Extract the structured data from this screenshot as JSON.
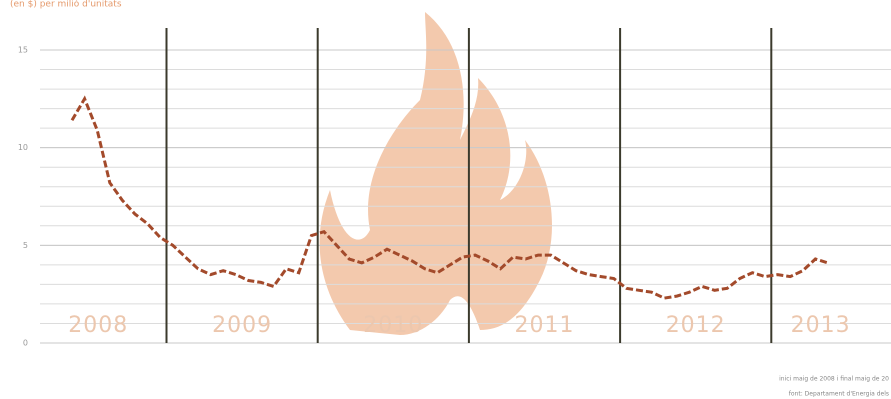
{
  "chart_data": {
    "type": "line",
    "subtitle": "(en $) per milió d'unitats",
    "notes": [
      "inici maig de 2008 i final maig de 20",
      "font: Departament d'Energia dels"
    ],
    "year_labels": [
      "2008",
      "2009",
      "2010",
      "2011",
      "2012",
      "2013"
    ],
    "series": [
      {
        "color": "#a34a2b",
        "values": [
          11.4,
          12.5,
          10.9,
          8.2,
          7.3,
          6.6,
          6.1,
          5.4,
          5.0,
          4.4,
          3.8,
          3.5,
          3.7,
          3.5,
          3.2,
          3.1,
          2.9,
          3.8,
          3.6,
          5.5,
          5.7,
          5.0,
          4.3,
          4.1,
          4.4,
          4.8,
          4.5,
          4.2,
          3.8,
          3.6,
          4.0,
          4.4,
          4.5,
          4.2,
          3.8,
          4.4,
          4.3,
          4.5,
          4.5,
          4.1,
          3.7,
          3.5,
          3.4,
          3.3,
          2.8,
          2.7,
          2.6,
          2.3,
          2.4,
          2.6,
          2.9,
          2.7,
          2.8,
          3.3,
          3.6,
          3.4,
          3.5,
          3.4,
          3.7,
          4.3,
          4.1
        ]
      }
    ],
    "ylim": [
      0,
      15
    ],
    "yticks": [
      0,
      5,
      10,
      15
    ],
    "grid": true,
    "minor_grid_step": 1
  }
}
